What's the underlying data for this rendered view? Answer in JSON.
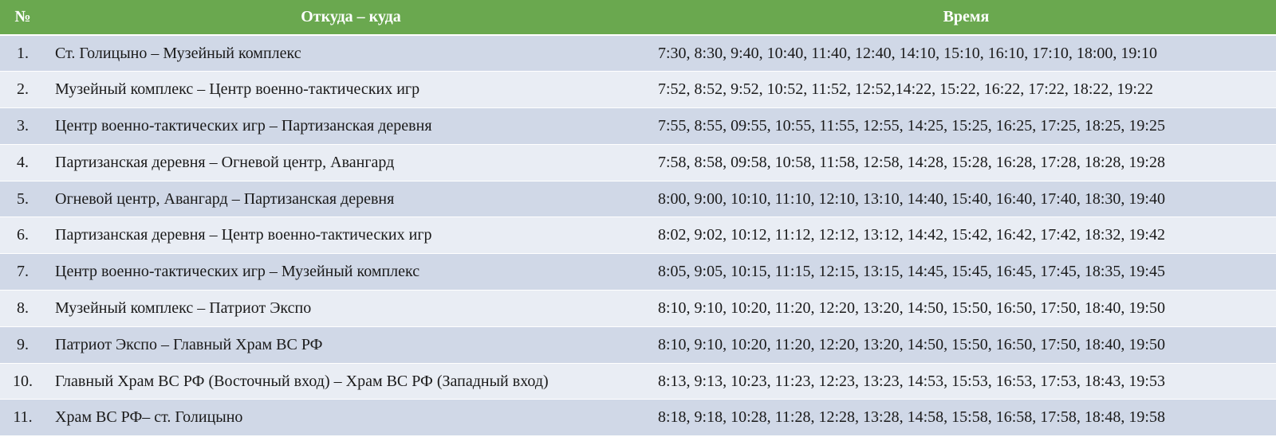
{
  "colors": {
    "header_bg": "#6aa84f",
    "row_odd": "#d0d8e7",
    "row_even": "#e9edf4"
  },
  "header": {
    "num": "№",
    "route": "Откуда – куда",
    "time": "Время"
  },
  "rows": [
    {
      "num": "1.",
      "route": "Ст. Голицыно – Музейный комплекс",
      "time": "7:30, 8:30, 9:40, 10:40, 11:40, 12:40, 14:10, 15:10, 16:10, 17:10, 18:00, 19:10"
    },
    {
      "num": "2.",
      "route": "Музейный комплекс – Центр военно-тактических игр",
      "time": "7:52, 8:52, 9:52, 10:52, 11:52, 12:52,14:22, 15:22, 16:22, 17:22, 18:22, 19:22"
    },
    {
      "num": "3.",
      "route": "Центр военно-тактических игр – Партизанская деревня",
      "time": "7:55, 8:55, 09:55, 10:55, 11:55, 12:55, 14:25, 15:25, 16:25, 17:25, 18:25, 19:25"
    },
    {
      "num": "4.",
      "route": "Партизанская деревня – Огневой центр, Авангард",
      "time": "7:58, 8:58, 09:58, 10:58, 11:58, 12:58, 14:28, 15:28, 16:28, 17:28, 18:28, 19:28"
    },
    {
      "num": "5.",
      "route": "Огневой центр, Авангард – Партизанская деревня",
      "time": "8:00, 9:00, 10:10, 11:10, 12:10, 13:10, 14:40, 15:40, 16:40, 17:40, 18:30, 19:40"
    },
    {
      "num": "6.",
      "route": "Партизанская деревня – Центр военно-тактических игр",
      "time": "8:02, 9:02, 10:12, 11:12, 12:12, 13:12, 14:42, 15:42, 16:42, 17:42, 18:32, 19:42"
    },
    {
      "num": "7.",
      "route": "Центр военно-тактических игр – Музейный комплекс",
      "time": "8:05, 9:05, 10:15, 11:15, 12:15, 13:15, 14:45, 15:45, 16:45, 17:45, 18:35, 19:45"
    },
    {
      "num": "8.",
      "route": "Музейный комплекс – Патриот Экспо",
      "time": "8:10, 9:10, 10:20, 11:20, 12:20, 13:20, 14:50, 15:50, 16:50, 17:50, 18:40, 19:50"
    },
    {
      "num": "9.",
      "route": "Патриот Экспо – Главный Храм ВС РФ",
      "time": "8:10, 9:10, 10:20, 11:20, 12:20, 13:20, 14:50, 15:50, 16:50, 17:50, 18:40, 19:50"
    },
    {
      "num": "10.",
      "route": "Главный Храм ВС РФ (Восточный вход) – Храм ВС РФ (Западный вход)",
      "time": "8:13, 9:13, 10:23, 11:23, 12:23, 13:23, 14:53, 15:53, 16:53, 17:53, 18:43, 19:53"
    },
    {
      "num": "11.",
      "route": "Храм ВС РФ– ст. Голицыно",
      "time": "8:18, 9:18, 10:28, 11:28, 12:28, 13:28, 14:58, 15:58, 16:58, 17:58, 18:48, 19:58"
    }
  ]
}
